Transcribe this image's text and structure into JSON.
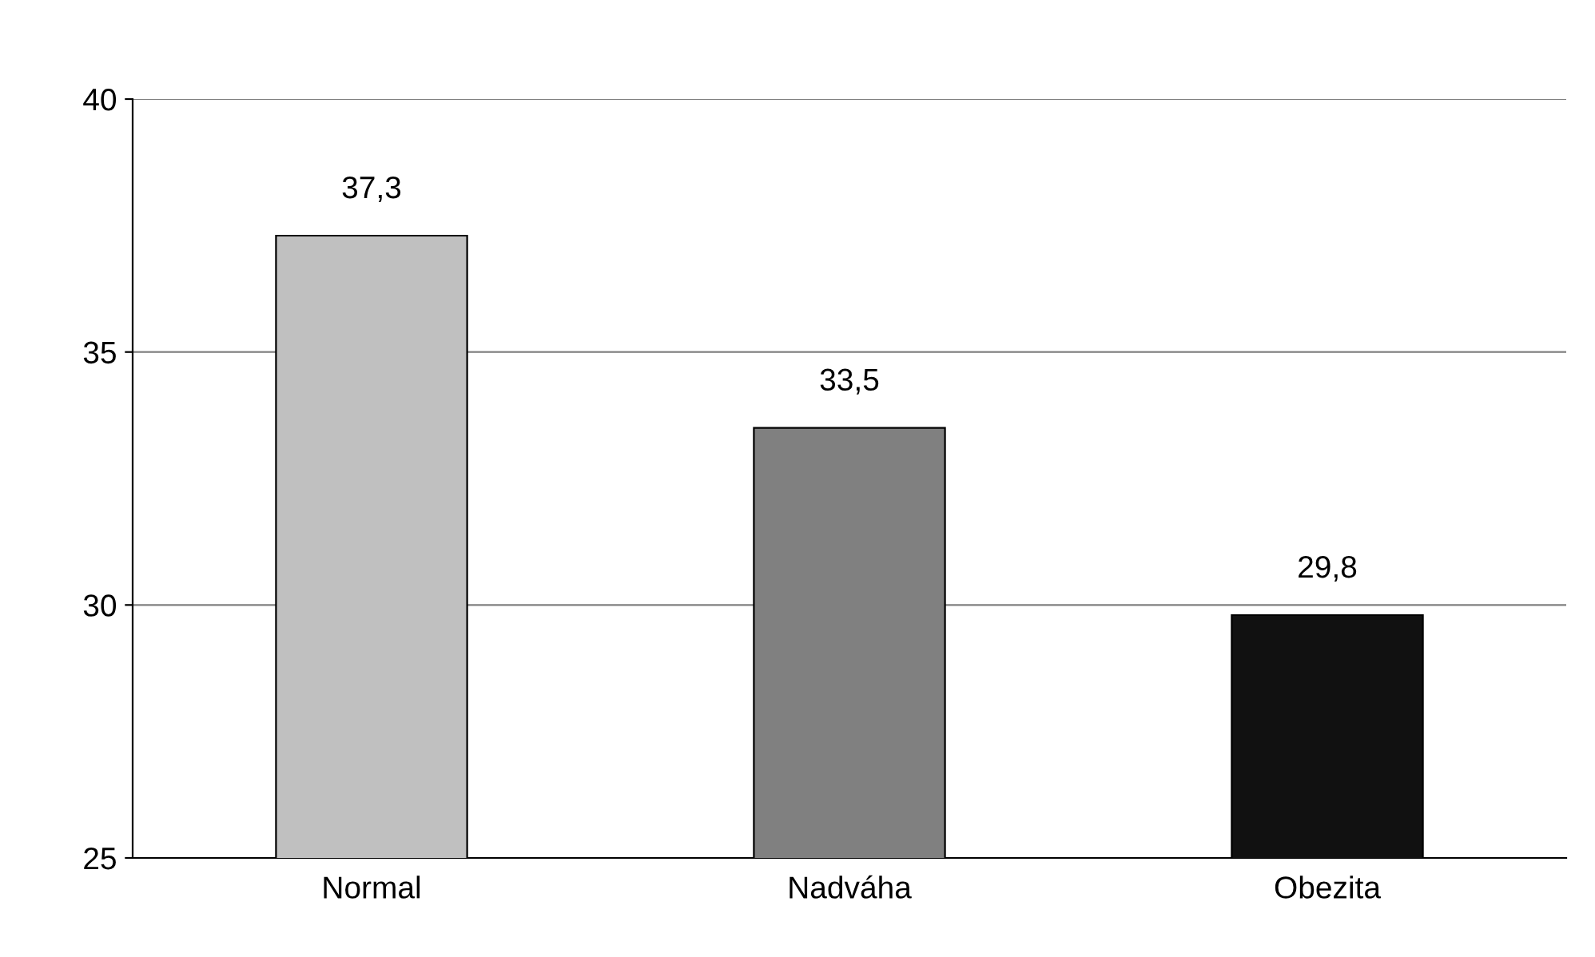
{
  "chart_data": {
    "type": "bar",
    "categories": [
      "Normal",
      "Nadváha",
      "Obezita"
    ],
    "values": [
      37.3,
      33.5,
      29.8
    ],
    "colors": [
      "#c0c0c0",
      "#808080",
      "#111111"
    ],
    "value_labels": [
      "37,3",
      "33,5",
      "29,8"
    ],
    "ylim": [
      25,
      40
    ],
    "yticks": [
      25,
      30,
      35,
      40
    ],
    "grid": "y",
    "legend": false
  }
}
